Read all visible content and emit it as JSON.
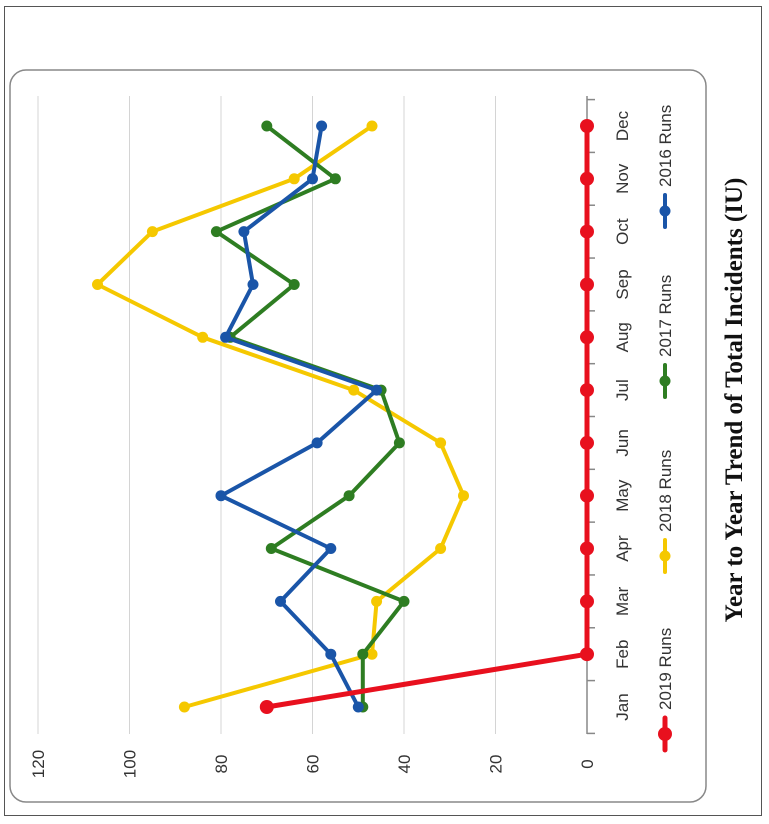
{
  "chart_data": {
    "type": "line",
    "title": "Year to Year Trend of Total Incidents (IU)",
    "categories": [
      "Jan",
      "Feb",
      "Mar",
      "Apr",
      "May",
      "Jun",
      "Jul",
      "Aug",
      "Sep",
      "Oct",
      "Nov",
      "Dec"
    ],
    "ylim": [
      0,
      120
    ],
    "yticks": [
      "0",
      "20",
      "40",
      "60",
      "80",
      "100",
      "120"
    ],
    "grid": true,
    "legend_position": "bottom",
    "orientation": "rotated 90 degrees counter-clockwise on the page",
    "series": [
      {
        "name": "2019 Runs",
        "color": "#e8101e",
        "values": [
          70,
          0,
          0,
          0,
          0,
          0,
          0,
          0,
          0,
          0,
          0,
          0
        ]
      },
      {
        "name": "2018 Runs",
        "color": "#f5c800",
        "values": [
          88,
          47,
          46,
          32,
          27,
          32,
          51,
          84,
          107,
          95,
          64,
          47
        ]
      },
      {
        "name": "2017 Runs",
        "color": "#2e7d22",
        "values": [
          49,
          49,
          40,
          69,
          52,
          41,
          45,
          78,
          64,
          81,
          55,
          70
        ]
      },
      {
        "name": "2016 Runs",
        "color": "#1a55a8",
        "values": [
          50,
          56,
          67,
          56,
          80,
          59,
          46,
          79,
          73,
          75,
          60,
          58
        ]
      }
    ]
  }
}
